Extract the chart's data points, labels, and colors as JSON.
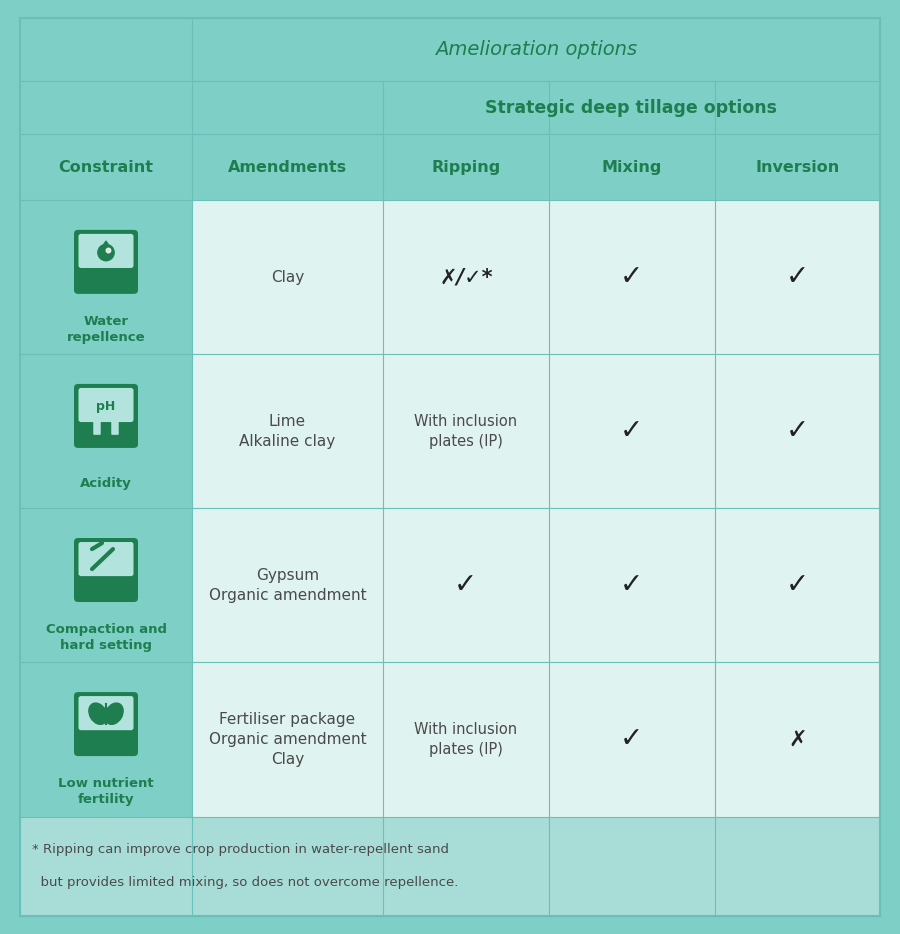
{
  "bg_color": "#7ecfc5",
  "cell_bg_white": "#dff3f0",
  "cell_bg_light": "#a8ddd7",
  "header_bg": "#7ecfc5",
  "icon_bg_dark": "#1e7e50",
  "icon_bg_light": "#b2e3dc",
  "green_text": "#1e7e50",
  "dark_text": "#4a4a4a",
  "border_color": "#6abfb8",
  "title_amelioration": "Amelioration options",
  "title_strategic": "Strategic deep tillage options",
  "col_headers": [
    "Constraint",
    "Amendments",
    "Ripping",
    "Mixing",
    "Inversion"
  ],
  "rows": [
    {
      "constraint_label": "Water\nrepellence",
      "amendments": "Clay",
      "ripping": "✗/✓*",
      "mixing": "✓",
      "inversion": "✓",
      "icon_type": "water"
    },
    {
      "constraint_label": "Acidity",
      "amendments": "Lime\nAlkaline clay",
      "ripping": "With inclusion\nplates (IP)",
      "mixing": "✓",
      "inversion": "✓",
      "icon_type": "ph"
    },
    {
      "constraint_label": "Compaction and\nhard setting",
      "amendments": "Gypsum\nOrganic amendment",
      "ripping": "✓",
      "mixing": "✓",
      "inversion": "✓",
      "icon_type": "compaction"
    },
    {
      "constraint_label": "Low nutrient\nfertility",
      "amendments": "Fertiliser package\nOrganic amendment\nClay",
      "ripping": "With inclusion\nplates (IP)",
      "mixing": "✓",
      "inversion": "✗",
      "icon_type": "nutrient"
    }
  ],
  "footnote": "* Ripping can improve crop production in water-repellent sand\n  but provides limited mixing, so does not overcome repellence."
}
